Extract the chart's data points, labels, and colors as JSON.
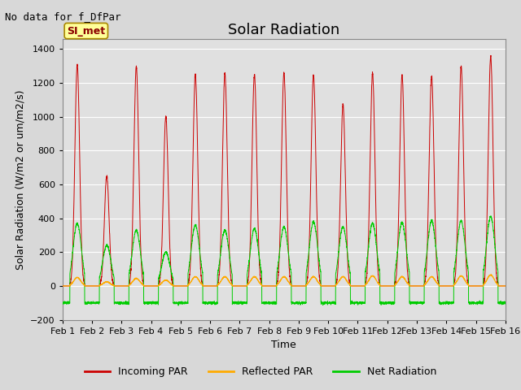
{
  "title": "Solar Radiation",
  "subtitle": "No data for f_DfPar",
  "xlabel": "Time",
  "ylabel": "Solar Radiation (W/m2 or um/m2/s)",
  "xlim": [
    0,
    15
  ],
  "ylim": [
    -200,
    1460
  ],
  "yticks": [
    -200,
    0,
    200,
    400,
    600,
    800,
    1000,
    1200,
    1400
  ],
  "xtick_labels": [
    "Feb 1",
    "Feb 2",
    "Feb 3",
    "Feb 4",
    "Feb 5",
    "Feb 6",
    "Feb 7",
    "Feb 8",
    "Feb 9",
    "Feb 10",
    "Feb 11",
    "Feb 12",
    "Feb 13",
    "Feb 14",
    "Feb 15",
    "Feb 16"
  ],
  "xtick_positions": [
    0,
    1,
    2,
    3,
    4,
    5,
    6,
    7,
    8,
    9,
    10,
    11,
    12,
    13,
    14,
    15
  ],
  "legend_entries": [
    "Incoming PAR",
    "Reflected PAR",
    "Net Radiation"
  ],
  "legend_colors": [
    "#cc0000",
    "#ffaa00",
    "#00cc00"
  ],
  "background_color": "#e0e0e0",
  "fig_color": "#d8d8d8",
  "grid_color": "#ffffff",
  "box_label": "SI_met",
  "box_bg": "#ffff99",
  "box_border": "#aa8800",
  "title_fontsize": 13,
  "label_fontsize": 9,
  "tick_fontsize": 8,
  "day_peaks_incoming": [
    1310,
    650,
    1300,
    1000,
    1250,
    1260,
    1250,
    1260,
    1250,
    1070,
    1260,
    1240,
    1240,
    1300,
    1360
  ],
  "day_peaks_reflected": [
    50,
    25,
    45,
    35,
    55,
    55,
    55,
    55,
    55,
    55,
    60,
    55,
    55,
    60,
    65
  ],
  "day_peaks_net": [
    370,
    240,
    330,
    200,
    360,
    330,
    340,
    350,
    380,
    350,
    370,
    375,
    385,
    385,
    410
  ],
  "night_net": -100
}
